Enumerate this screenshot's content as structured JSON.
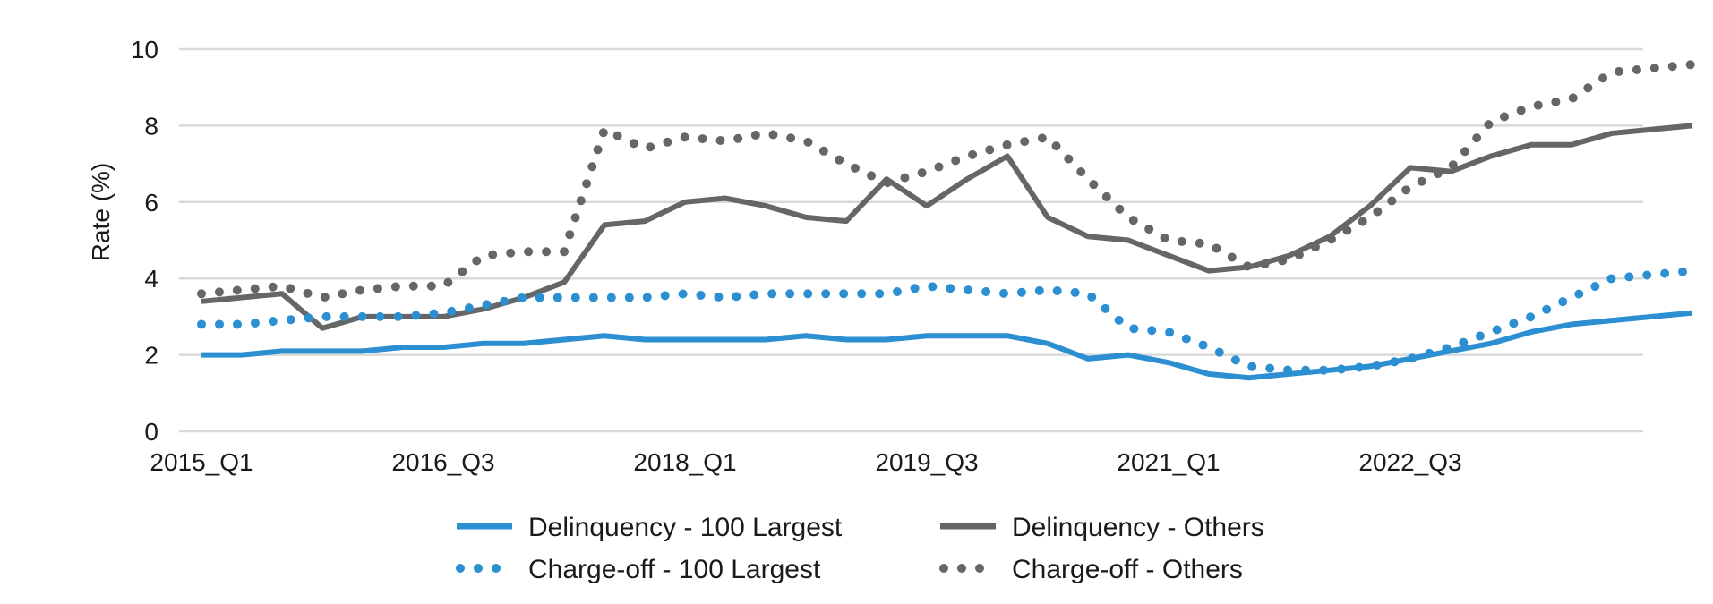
{
  "chart_data": {
    "type": "line",
    "ylabel": "Rate (%)",
    "xlabel": "",
    "ylim": [
      0,
      10
    ],
    "yticks": [
      0,
      2,
      4,
      6,
      8,
      10
    ],
    "grid": "horizontal",
    "legend_position": "bottom",
    "categories": [
      "2015_Q1",
      "2015_Q2",
      "2015_Q3",
      "2015_Q4",
      "2016_Q1",
      "2016_Q2",
      "2016_Q3",
      "2016_Q4",
      "2017_Q1",
      "2017_Q2",
      "2017_Q3",
      "2017_Q4",
      "2018_Q1",
      "2018_Q2",
      "2018_Q3",
      "2018_Q4",
      "2019_Q1",
      "2019_Q2",
      "2019_Q3",
      "2019_Q4",
      "2020_Q1",
      "2020_Q2",
      "2020_Q3",
      "2020_Q4",
      "2021_Q1",
      "2021_Q2",
      "2021_Q3",
      "2021_Q4",
      "2022_Q1",
      "2022_Q2",
      "2022_Q3",
      "2022_Q4",
      "2023_Q1",
      "2023_Q2",
      "2023_Q3",
      "2023_Q4",
      "2024_Q1",
      "2024_Q2"
    ],
    "xtick_labels": [
      "2015_Q1",
      "2016_Q3",
      "2018_Q1",
      "2019_Q3",
      "2021_Q1",
      "2022_Q3"
    ],
    "series": [
      {
        "name": "Delinquency - 100 Largest",
        "color": "#2b8fd1",
        "style": "solid",
        "values": [
          2.0,
          2.0,
          2.1,
          2.1,
          2.1,
          2.2,
          2.2,
          2.3,
          2.3,
          2.4,
          2.5,
          2.4,
          2.4,
          2.4,
          2.4,
          2.5,
          2.4,
          2.4,
          2.5,
          2.5,
          2.5,
          2.3,
          1.9,
          2.0,
          1.8,
          1.5,
          1.4,
          1.5,
          1.6,
          1.7,
          1.9,
          2.1,
          2.3,
          2.6,
          2.8,
          2.9,
          3.0,
          3.1
        ]
      },
      {
        "name": "Delinquency - Others",
        "color": "#666666",
        "style": "solid",
        "values": [
          3.4,
          3.5,
          3.6,
          2.7,
          3.0,
          3.0,
          3.0,
          3.2,
          3.5,
          3.9,
          5.4,
          5.5,
          6.0,
          6.1,
          5.9,
          5.6,
          5.5,
          6.6,
          5.9,
          6.6,
          7.2,
          5.6,
          5.1,
          5.0,
          4.6,
          4.2,
          4.3,
          4.6,
          5.1,
          5.9,
          6.9,
          6.8,
          7.2,
          7.5,
          7.5,
          7.8,
          7.9,
          8.0
        ]
      },
      {
        "name": "Charge-off - 100 Largest",
        "color": "#2b8fd1",
        "style": "dotted",
        "values": [
          2.8,
          2.8,
          2.9,
          3.0,
          3.0,
          3.0,
          3.1,
          3.3,
          3.5,
          3.5,
          3.5,
          3.5,
          3.6,
          3.5,
          3.6,
          3.6,
          3.6,
          3.6,
          3.8,
          3.7,
          3.6,
          3.7,
          3.6,
          2.7,
          2.6,
          2.2,
          1.7,
          1.6,
          1.6,
          1.7,
          1.9,
          2.2,
          2.6,
          3.0,
          3.5,
          4.0,
          4.1,
          4.2
        ]
      },
      {
        "name": "Charge-off - Others",
        "color": "#666666",
        "style": "dotted",
        "values": [
          3.6,
          3.7,
          3.8,
          3.5,
          3.7,
          3.8,
          3.8,
          4.6,
          4.7,
          4.7,
          7.9,
          7.4,
          7.7,
          7.6,
          7.8,
          7.6,
          7.0,
          6.5,
          6.8,
          7.2,
          7.5,
          7.7,
          6.6,
          5.6,
          5.0,
          4.9,
          4.3,
          4.5,
          5.0,
          5.6,
          6.4,
          6.9,
          8.1,
          8.5,
          8.7,
          9.4,
          9.5,
          9.6
        ]
      }
    ]
  }
}
